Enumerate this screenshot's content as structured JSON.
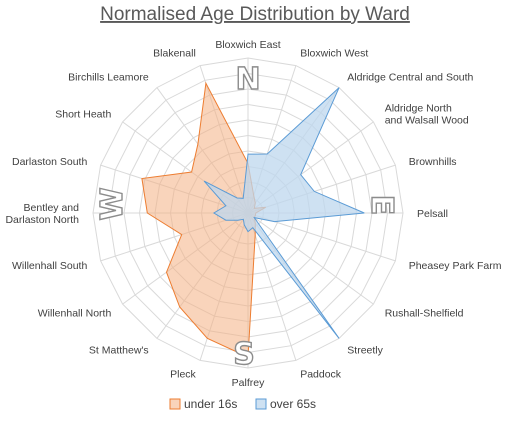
{
  "chart_data": {
    "type": "radar",
    "title": "Normalised Age Distribution by Ward",
    "categories": [
      "Bloxwich East",
      "Bloxwich West",
      "Aldridge Central and South",
      "Aldridge North and Walsall Wood",
      "Brownhills",
      "Pelsall",
      "Pheasey Park Farm",
      "Rushall-Shelfield",
      "Streetly",
      "Paddock",
      "Palfrey",
      "Pleck",
      "St Matthew's",
      "Willenhall North",
      "Willenhall South",
      "Bentley and Darlaston North",
      "Darlaston South",
      "Short Heath",
      "Birchills Leamore",
      "Blakenall"
    ],
    "series": [
      {
        "name": "under 16s",
        "color": "#ed7d31",
        "fill": "rgba(244,177,131,0.55)",
        "values": [
          0.32,
          0.12,
          0.08,
          0.05,
          0.12,
          0.05,
          0.05,
          0.05,
          0.08,
          0.15,
          0.93,
          0.85,
          0.75,
          0.65,
          0.45,
          0.65,
          0.72,
          0.45,
          0.55,
          0.88
        ]
      },
      {
        "name": "over 65s",
        "color": "#5b9bd5",
        "fill": "rgba(189,215,238,0.75)",
        "values": [
          0.38,
          0.4,
          1.0,
          0.42,
          0.45,
          0.75,
          0.18,
          0.05,
          1.0,
          0.1,
          0.12,
          0.08,
          0.05,
          0.08,
          0.15,
          0.22,
          0.15,
          0.35,
          0.12,
          0.1
        ]
      }
    ],
    "rlim": [
      0,
      1
    ],
    "gridlines": 10,
    "compass": {
      "north": "N",
      "east": "E",
      "south": "S",
      "west": "W"
    },
    "legend_position": "bottom"
  }
}
